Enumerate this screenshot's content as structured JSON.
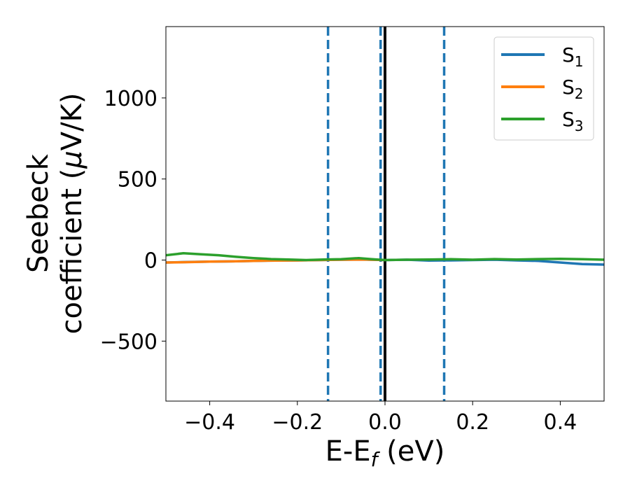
{
  "chart_data": {
    "type": "line",
    "title": "",
    "xlabel": {
      "main": "E-E",
      "sub": "f",
      "unit": " (eV)"
    },
    "ylabel": {
      "line1": "Seebeck",
      "line2": "coefficient  (",
      "mu": "μ",
      "line2_end": "V/K)"
    },
    "xlim": [
      -0.5,
      0.5
    ],
    "ylim": [
      -870,
      1440
    ],
    "x_ticks": [
      -0.4,
      -0.2,
      0.0,
      0.2,
      0.4
    ],
    "x_tick_labels": [
      "−0.4",
      "−0.2",
      "0.0",
      "0.2",
      "0.4"
    ],
    "y_ticks": [
      -500,
      0,
      500,
      1000
    ],
    "y_tick_labels": [
      "−500",
      "0",
      "500",
      "1000"
    ],
    "legend_position": "top-right",
    "vertical_lines": [
      {
        "x": -0.13,
        "style": "dashed",
        "color": "#1f77b4"
      },
      {
        "x": -0.01,
        "style": "dashed",
        "color": "#1f77b4"
      },
      {
        "x": 0.0,
        "style": "solid",
        "color": "#000000"
      },
      {
        "x": 0.135,
        "style": "dashed",
        "color": "#1f77b4"
      }
    ],
    "series": [
      {
        "name": "S",
        "sub": "1",
        "color": "#1f77b4",
        "x": [
          -0.5,
          -0.45,
          -0.4,
          -0.35,
          -0.3,
          -0.25,
          -0.2,
          -0.15,
          -0.1,
          -0.05,
          0.0,
          0.05,
          0.1,
          0.15,
          0.2,
          0.25,
          0.3,
          0.35,
          0.4,
          0.45,
          0.5
        ],
        "y": [
          -15,
          -12,
          -10,
          -8,
          -5,
          -3,
          -2,
          0,
          2,
          3,
          0,
          2,
          -3,
          -2,
          0,
          2,
          -2,
          -5,
          -15,
          -25,
          -28
        ]
      },
      {
        "name": "S",
        "sub": "2",
        "color": "#ff7f0e",
        "x": [
          -0.5,
          -0.45,
          -0.4,
          -0.35,
          -0.3,
          -0.25,
          -0.2,
          -0.15,
          -0.1,
          -0.05,
          0.0
        ],
        "y": [
          -15,
          -13,
          -10,
          -8,
          -5,
          -3,
          -2,
          0,
          2,
          3,
          0
        ]
      },
      {
        "name": "S",
        "sub": "3",
        "color": "#2ca02c",
        "x": [
          -0.5,
          -0.46,
          -0.42,
          -0.38,
          -0.34,
          -0.3,
          -0.26,
          -0.22,
          -0.18,
          -0.14,
          -0.1,
          -0.06,
          -0.03,
          0.0,
          0.05,
          0.1,
          0.15,
          0.2,
          0.25,
          0.3,
          0.35,
          0.4,
          0.45,
          0.5
        ],
        "y": [
          30,
          42,
          36,
          30,
          20,
          12,
          6,
          3,
          0,
          3,
          5,
          12,
          5,
          0,
          2,
          3,
          5,
          2,
          6,
          3,
          6,
          8,
          5,
          2
        ]
      }
    ]
  }
}
